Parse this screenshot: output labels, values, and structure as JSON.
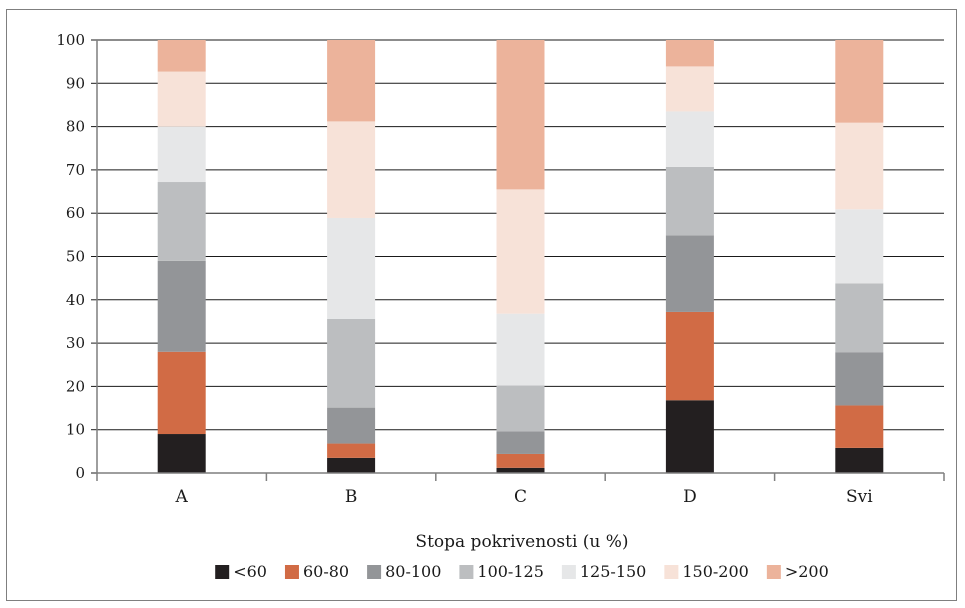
{
  "chart_data": {
    "type": "bar",
    "stacked": true,
    "categories": [
      "A",
      "B",
      "C",
      "D",
      "Svi"
    ],
    "series": [
      {
        "name": "<60",
        "color": "#231f20",
        "values": [
          9,
          3.5,
          1.2,
          16.8,
          5.8
        ]
      },
      {
        "name": "60-80",
        "color": "#d16b45",
        "values": [
          19,
          3.3,
          3.2,
          20.4,
          9.8
        ]
      },
      {
        "name": "80-100",
        "color": "#939598",
        "values": [
          21,
          8.3,
          5.2,
          17.7,
          12.3
        ]
      },
      {
        "name": "100-125",
        "color": "#bcbec0",
        "values": [
          18.2,
          20.5,
          10.6,
          15.8,
          15.9
        ]
      },
      {
        "name": "125-150",
        "color": "#e6e7e8",
        "values": [
          12.8,
          23.3,
          16.6,
          12.8,
          17.1
        ]
      },
      {
        "name": "150-200",
        "color": "#f7e2d8",
        "values": [
          12.7,
          22.3,
          28.7,
          10.4,
          20.0
        ]
      },
      {
        "name": ">200",
        "color": "#ecb39b",
        "values": [
          7.3,
          18.8,
          34.5,
          6.1,
          19.1
        ]
      }
    ],
    "ylim": [
      0,
      100
    ],
    "yticks": [
      0,
      10,
      20,
      30,
      40,
      50,
      60,
      70,
      80,
      90,
      100
    ],
    "xlabel": "Stopa pokrivenosti (u %)",
    "ylabel": "",
    "grid": true,
    "legend_position": "bottom"
  }
}
